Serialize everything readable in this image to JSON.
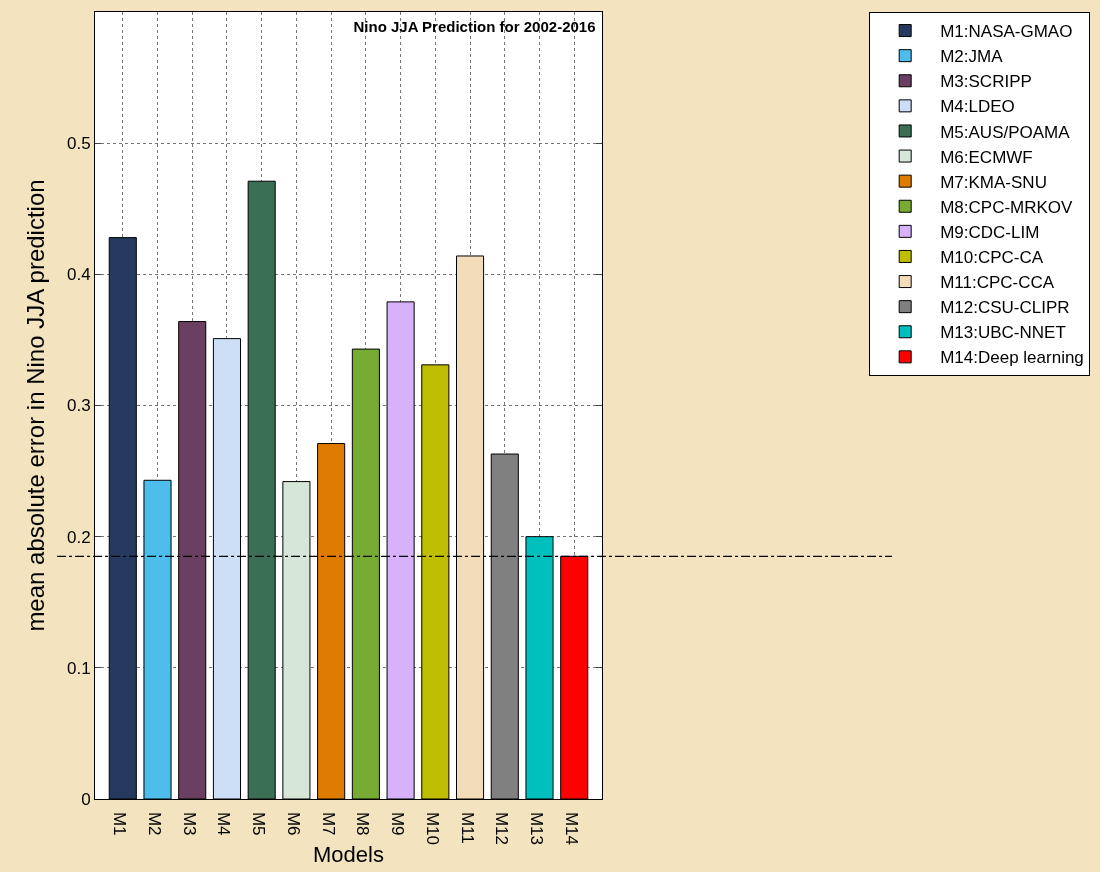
{
  "chart_data": {
    "type": "bar",
    "title": "Nino JJA Prediction for 2002-2016",
    "xlabel": "Models",
    "ylabel": "mean absolute error in Nino JJA prediction",
    "categories": [
      "M1",
      "M2",
      "M3",
      "M4",
      "M5",
      "M6",
      "M7",
      "M8",
      "M9",
      "M10",
      "M11",
      "M12",
      "M13",
      "M14"
    ],
    "series": [
      {
        "name": "M1:NASA-GMAO",
        "color": "#263a5f",
        "values": [
          0.428,
          null,
          null,
          null,
          null,
          null,
          null,
          null,
          null,
          null,
          null,
          null,
          null,
          null
        ]
      },
      {
        "name": "M2:JMA",
        "color": "#4dbdec",
        "values": [
          null,
          0.243,
          null,
          null,
          null,
          null,
          null,
          null,
          null,
          null,
          null,
          null,
          null,
          null
        ]
      },
      {
        "name": "M3:SCRIPP",
        "color": "#6b3f62",
        "values": [
          null,
          null,
          0.364,
          null,
          null,
          null,
          null,
          null,
          null,
          null,
          null,
          null,
          null,
          null
        ]
      },
      {
        "name": "M4:LDEO",
        "color": "#cddff6",
        "values": [
          null,
          null,
          null,
          0.351,
          null,
          null,
          null,
          null,
          null,
          null,
          null,
          null,
          null,
          null
        ]
      },
      {
        "name": "M5:AUS/POAMA",
        "color": "#3a6f55",
        "values": [
          null,
          null,
          null,
          null,
          0.471,
          null,
          null,
          null,
          null,
          null,
          null,
          null,
          null,
          null
        ]
      },
      {
        "name": "M6:ECMWF",
        "color": "#d6e7da",
        "values": [
          null,
          null,
          null,
          null,
          null,
          0.242,
          null,
          null,
          null,
          null,
          null,
          null,
          null,
          null
        ]
      },
      {
        "name": "M7:KMA-SNU",
        "color": "#df7c00",
        "values": [
          null,
          null,
          null,
          null,
          null,
          null,
          0.271,
          null,
          null,
          null,
          null,
          null,
          null,
          null
        ]
      },
      {
        "name": "M8:CPC-MRKOV",
        "color": "#77ab31",
        "values": [
          null,
          null,
          null,
          null,
          null,
          null,
          null,
          0.343,
          null,
          null,
          null,
          null,
          null,
          null
        ]
      },
      {
        "name": "M9:CDC-LIM",
        "color": "#d8b1fb",
        "values": [
          null,
          null,
          null,
          null,
          null,
          null,
          null,
          null,
          0.379,
          null,
          null,
          null,
          null,
          null
        ]
      },
      {
        "name": "M10:CPC-CA",
        "color": "#bfbd00",
        "values": [
          null,
          null,
          null,
          null,
          null,
          null,
          null,
          null,
          null,
          0.331,
          null,
          null,
          null,
          null
        ]
      },
      {
        "name": "M11:CPC-CCA",
        "color": "#f2dcb9",
        "values": [
          null,
          null,
          null,
          null,
          null,
          null,
          null,
          null,
          null,
          null,
          0.414,
          null,
          null,
          null
        ]
      },
      {
        "name": "M12:CSU-CLIPR",
        "color": "#808080",
        "values": [
          null,
          null,
          null,
          null,
          null,
          null,
          null,
          null,
          null,
          null,
          null,
          0.263,
          null,
          null
        ]
      },
      {
        "name": "M13:UBC-NNET",
        "color": "#00bfbf",
        "values": [
          null,
          null,
          null,
          null,
          null,
          null,
          null,
          null,
          null,
          null,
          null,
          null,
          0.2,
          null
        ]
      },
      {
        "name": "M14:Deep learning",
        "color": "#ff0000",
        "values": [
          null,
          null,
          null,
          null,
          null,
          null,
          null,
          null,
          null,
          null,
          null,
          null,
          null,
          0.185
        ]
      }
    ],
    "ylim": [
      0,
      0.6
    ],
    "yticks": [
      0,
      0.1,
      0.2,
      0.3,
      0.4,
      0.5
    ],
    "grid": true,
    "legend": "top right",
    "ref_lines": [
      {
        "axis": "y",
        "value": 0.185,
        "color": "#000000",
        "line_style": "dashdot"
      }
    ]
  }
}
